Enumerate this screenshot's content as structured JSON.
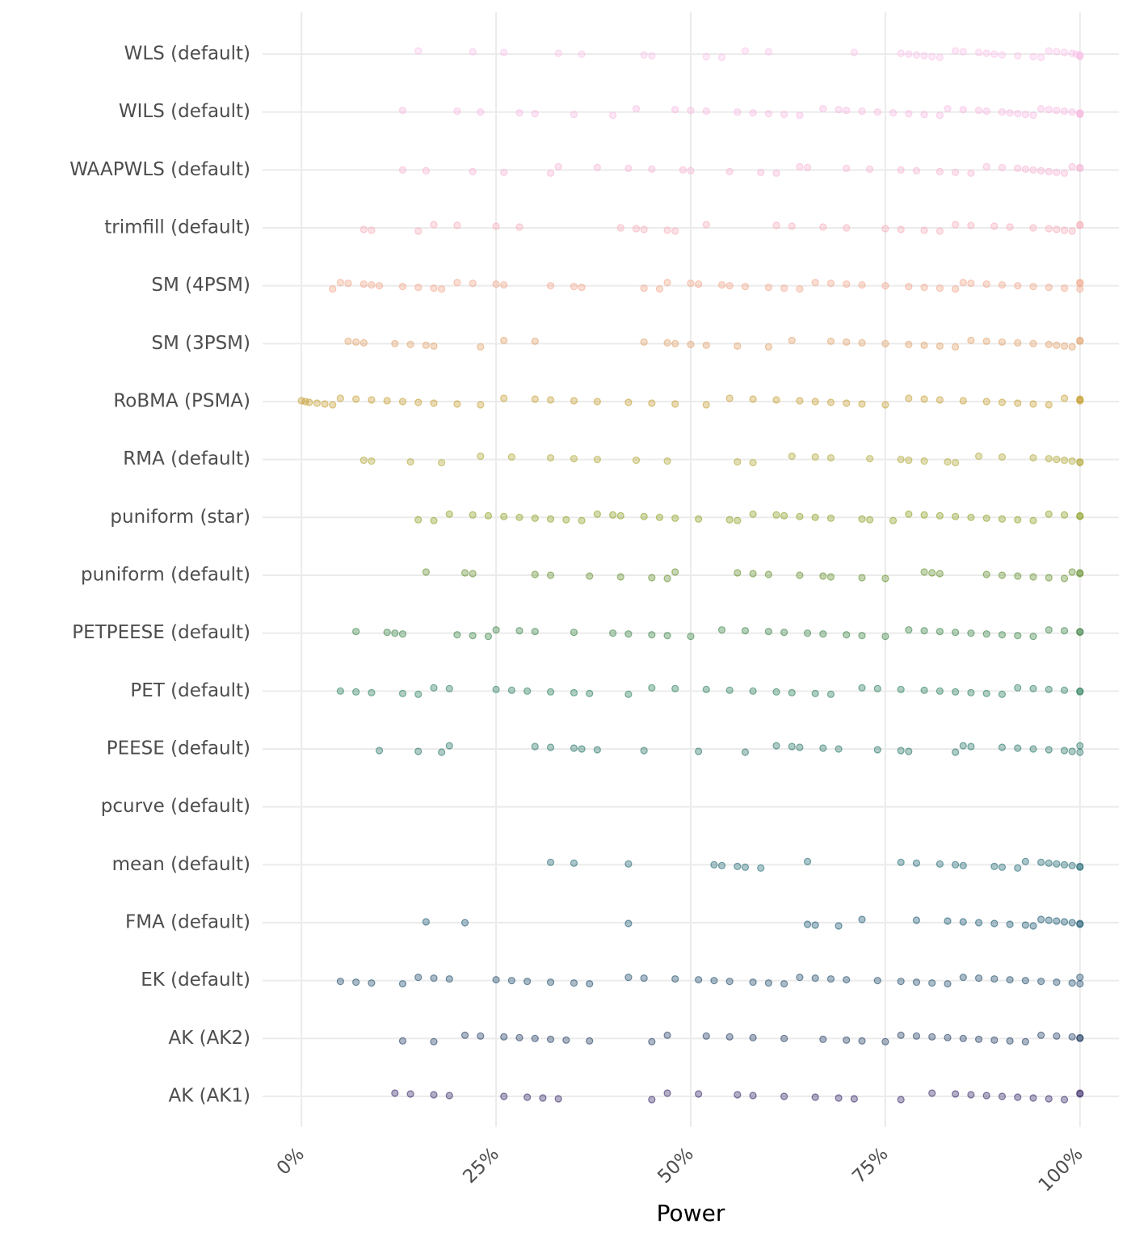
{
  "chart_data": {
    "type": "strip",
    "x_label": "Power",
    "xlim": [
      -5,
      105
    ],
    "xticks": [
      {
        "value": 0,
        "label": "0%"
      },
      {
        "value": 25,
        "label": "25%"
      },
      {
        "value": 50,
        "label": "50%"
      },
      {
        "value": 75,
        "label": "75%"
      },
      {
        "value": 100,
        "label": "100%"
      }
    ],
    "grid": true,
    "series": [
      {
        "name": "WLS (default)",
        "color": "#f9c0e8",
        "values": [
          15,
          22,
          26,
          33,
          36,
          44,
          45,
          52,
          54,
          57,
          60,
          71,
          77,
          78,
          79,
          80,
          81,
          82,
          84,
          85,
          87,
          88,
          89,
          90,
          92,
          94,
          95,
          96,
          97,
          98,
          99,
          99.5,
          100,
          100,
          100
        ]
      },
      {
        "name": "WILS (default)",
        "color": "#f7b5e0",
        "values": [
          13,
          20,
          23,
          28,
          30,
          35,
          40,
          43,
          48,
          50,
          52,
          56,
          58,
          60,
          62,
          64,
          67,
          69,
          70,
          72,
          74,
          76,
          78,
          80,
          82,
          83,
          85,
          87,
          88,
          90,
          91,
          92,
          93,
          94,
          95,
          96,
          97,
          98,
          99,
          100,
          100,
          100
        ]
      },
      {
        "name": "WAAPWLS (default)",
        "color": "#f6aed0",
        "values": [
          13,
          16,
          22,
          26,
          32,
          33,
          38,
          42,
          45,
          49,
          50,
          55,
          59,
          61,
          64,
          65,
          70,
          73,
          77,
          79,
          82,
          84,
          86,
          88,
          90,
          92,
          93,
          94,
          95,
          96,
          97,
          98,
          99,
          100,
          100
        ]
      },
      {
        "name": "trimfill (default)",
        "color": "#f7a9b6",
        "values": [
          8,
          9,
          15,
          17,
          20,
          25,
          28,
          41,
          43,
          44,
          47,
          48,
          52,
          61,
          63,
          67,
          70,
          75,
          77,
          80,
          82,
          84,
          86,
          89,
          91,
          94,
          96,
          97,
          98,
          99,
          100,
          100
        ]
      },
      {
        "name": "SM (4PSM)",
        "color": "#f2a084",
        "values": [
          4,
          5,
          6,
          8,
          9,
          10,
          13,
          15,
          17,
          18,
          20,
          22,
          25,
          26,
          32,
          35,
          36,
          44,
          46,
          47,
          50,
          51,
          54,
          55,
          57,
          60,
          62,
          64,
          66,
          68,
          70,
          72,
          75,
          78,
          80,
          82,
          84,
          85,
          86,
          88,
          90,
          92,
          94,
          96,
          98,
          100,
          100,
          100
        ]
      },
      {
        "name": "SM (3PSM)",
        "color": "#e09d62",
        "values": [
          6,
          7,
          8,
          12,
          14,
          16,
          17,
          23,
          26,
          30,
          44,
          47,
          48,
          50,
          52,
          56,
          60,
          63,
          68,
          70,
          72,
          75,
          78,
          80,
          82,
          84,
          86,
          88,
          90,
          92,
          94,
          96,
          97,
          98,
          99,
          100,
          100
        ]
      },
      {
        "name": "RoBMA (PSMA)",
        "color": "#c49a2a",
        "values": [
          0,
          0.5,
          1,
          2,
          3,
          4,
          5,
          7,
          9,
          11,
          13,
          15,
          17,
          20,
          23,
          26,
          30,
          32,
          35,
          38,
          42,
          45,
          48,
          52,
          55,
          58,
          61,
          64,
          66,
          68,
          70,
          72,
          75,
          78,
          80,
          82,
          85,
          88,
          90,
          92,
          94,
          96,
          98,
          100,
          100,
          100
        ]
      },
      {
        "name": "RMA (default)",
        "color": "#aba22a",
        "values": [
          8,
          9,
          14,
          18,
          23,
          27,
          32,
          35,
          38,
          43,
          47,
          56,
          58,
          63,
          66,
          68,
          73,
          77,
          78,
          80,
          83,
          84,
          87,
          90,
          94,
          96,
          97,
          98,
          99,
          100,
          100
        ]
      },
      {
        "name": "puniform (star)",
        "color": "#849a14",
        "values": [
          15,
          17,
          19,
          22,
          24,
          26,
          28,
          30,
          32,
          34,
          36,
          38,
          40,
          41,
          44,
          46,
          48,
          51,
          55,
          56,
          58,
          61,
          62,
          64,
          66,
          68,
          72,
          73,
          76,
          78,
          80,
          82,
          84,
          86,
          88,
          90,
          92,
          94,
          96,
          98,
          100,
          100
        ]
      },
      {
        "name": "puniform (default)",
        "color": "#5d8a22",
        "values": [
          16,
          21,
          22,
          30,
          32,
          37,
          41,
          45,
          47,
          48,
          56,
          58,
          60,
          64,
          67,
          68,
          72,
          75,
          80,
          81,
          82,
          88,
          90,
          92,
          94,
          96,
          98,
          99,
          100,
          100
        ]
      },
      {
        "name": "PETPEESE (default)",
        "color": "#2e7b3a",
        "values": [
          7,
          11,
          12,
          13,
          20,
          22,
          24,
          25,
          28,
          30,
          35,
          40,
          42,
          45,
          47,
          50,
          54,
          57,
          60,
          62,
          65,
          67,
          70,
          72,
          75,
          78,
          80,
          82,
          84,
          86,
          88,
          90,
          92,
          94,
          96,
          98,
          100,
          100
        ]
      },
      {
        "name": "PET (default)",
        "color": "#1b7650",
        "values": [
          5,
          7,
          9,
          13,
          15,
          17,
          19,
          25,
          27,
          29,
          32,
          35,
          37,
          42,
          45,
          48,
          52,
          55,
          58,
          61,
          63,
          66,
          68,
          72,
          74,
          77,
          80,
          82,
          84,
          86,
          88,
          90,
          92,
          94,
          96,
          98,
          100,
          100
        ]
      },
      {
        "name": "PEESE (default)",
        "color": "#1b6e5e",
        "values": [
          10,
          15,
          18,
          19,
          30,
          32,
          35,
          36,
          38,
          44,
          51,
          57,
          61,
          63,
          64,
          67,
          69,
          74,
          77,
          78,
          84,
          85,
          86,
          90,
          92,
          94,
          96,
          98,
          99,
          100,
          100
        ]
      },
      {
        "name": "pcurve (default)",
        "color": "#1a6a66",
        "values": []
      },
      {
        "name": "mean (default)",
        "color": "#115f6a",
        "values": [
          32,
          35,
          42,
          53,
          54,
          56,
          57,
          59,
          65,
          77,
          79,
          82,
          84,
          85,
          89,
          90,
          92,
          93,
          95,
          96,
          97,
          98,
          99,
          100,
          100
        ]
      },
      {
        "name": "FMA (default)",
        "color": "#0c4e6a",
        "values": [
          16,
          21,
          42,
          65,
          66,
          69,
          72,
          79,
          83,
          85,
          87,
          89,
          91,
          93,
          94,
          95,
          96,
          97,
          98,
          99,
          100,
          100
        ]
      },
      {
        "name": "EK (default)",
        "color": "#0d3e60",
        "values": [
          5,
          7,
          9,
          13,
          15,
          17,
          19,
          25,
          27,
          29,
          32,
          35,
          37,
          42,
          44,
          48,
          51,
          53,
          55,
          58,
          60,
          62,
          64,
          66,
          68,
          70,
          74,
          77,
          79,
          81,
          83,
          85,
          87,
          89,
          91,
          93,
          95,
          97,
          99,
          100,
          100
        ]
      },
      {
        "name": "AK (AK2)",
        "color": "#112e58",
        "values": [
          13,
          17,
          21,
          23,
          26,
          28,
          30,
          32,
          34,
          37,
          45,
          47,
          52,
          55,
          58,
          62,
          67,
          70,
          72,
          75,
          77,
          79,
          81,
          83,
          85,
          87,
          89,
          91,
          93,
          95,
          97,
          99,
          100,
          100
        ]
      },
      {
        "name": "AK (AK1)",
        "color": "#2a1a5e",
        "values": [
          12,
          14,
          17,
          19,
          26,
          29,
          31,
          33,
          45,
          47,
          51,
          56,
          58,
          62,
          66,
          69,
          71,
          77,
          81,
          84,
          86,
          88,
          90,
          92,
          94,
          96,
          98,
          100,
          100
        ]
      }
    ]
  }
}
